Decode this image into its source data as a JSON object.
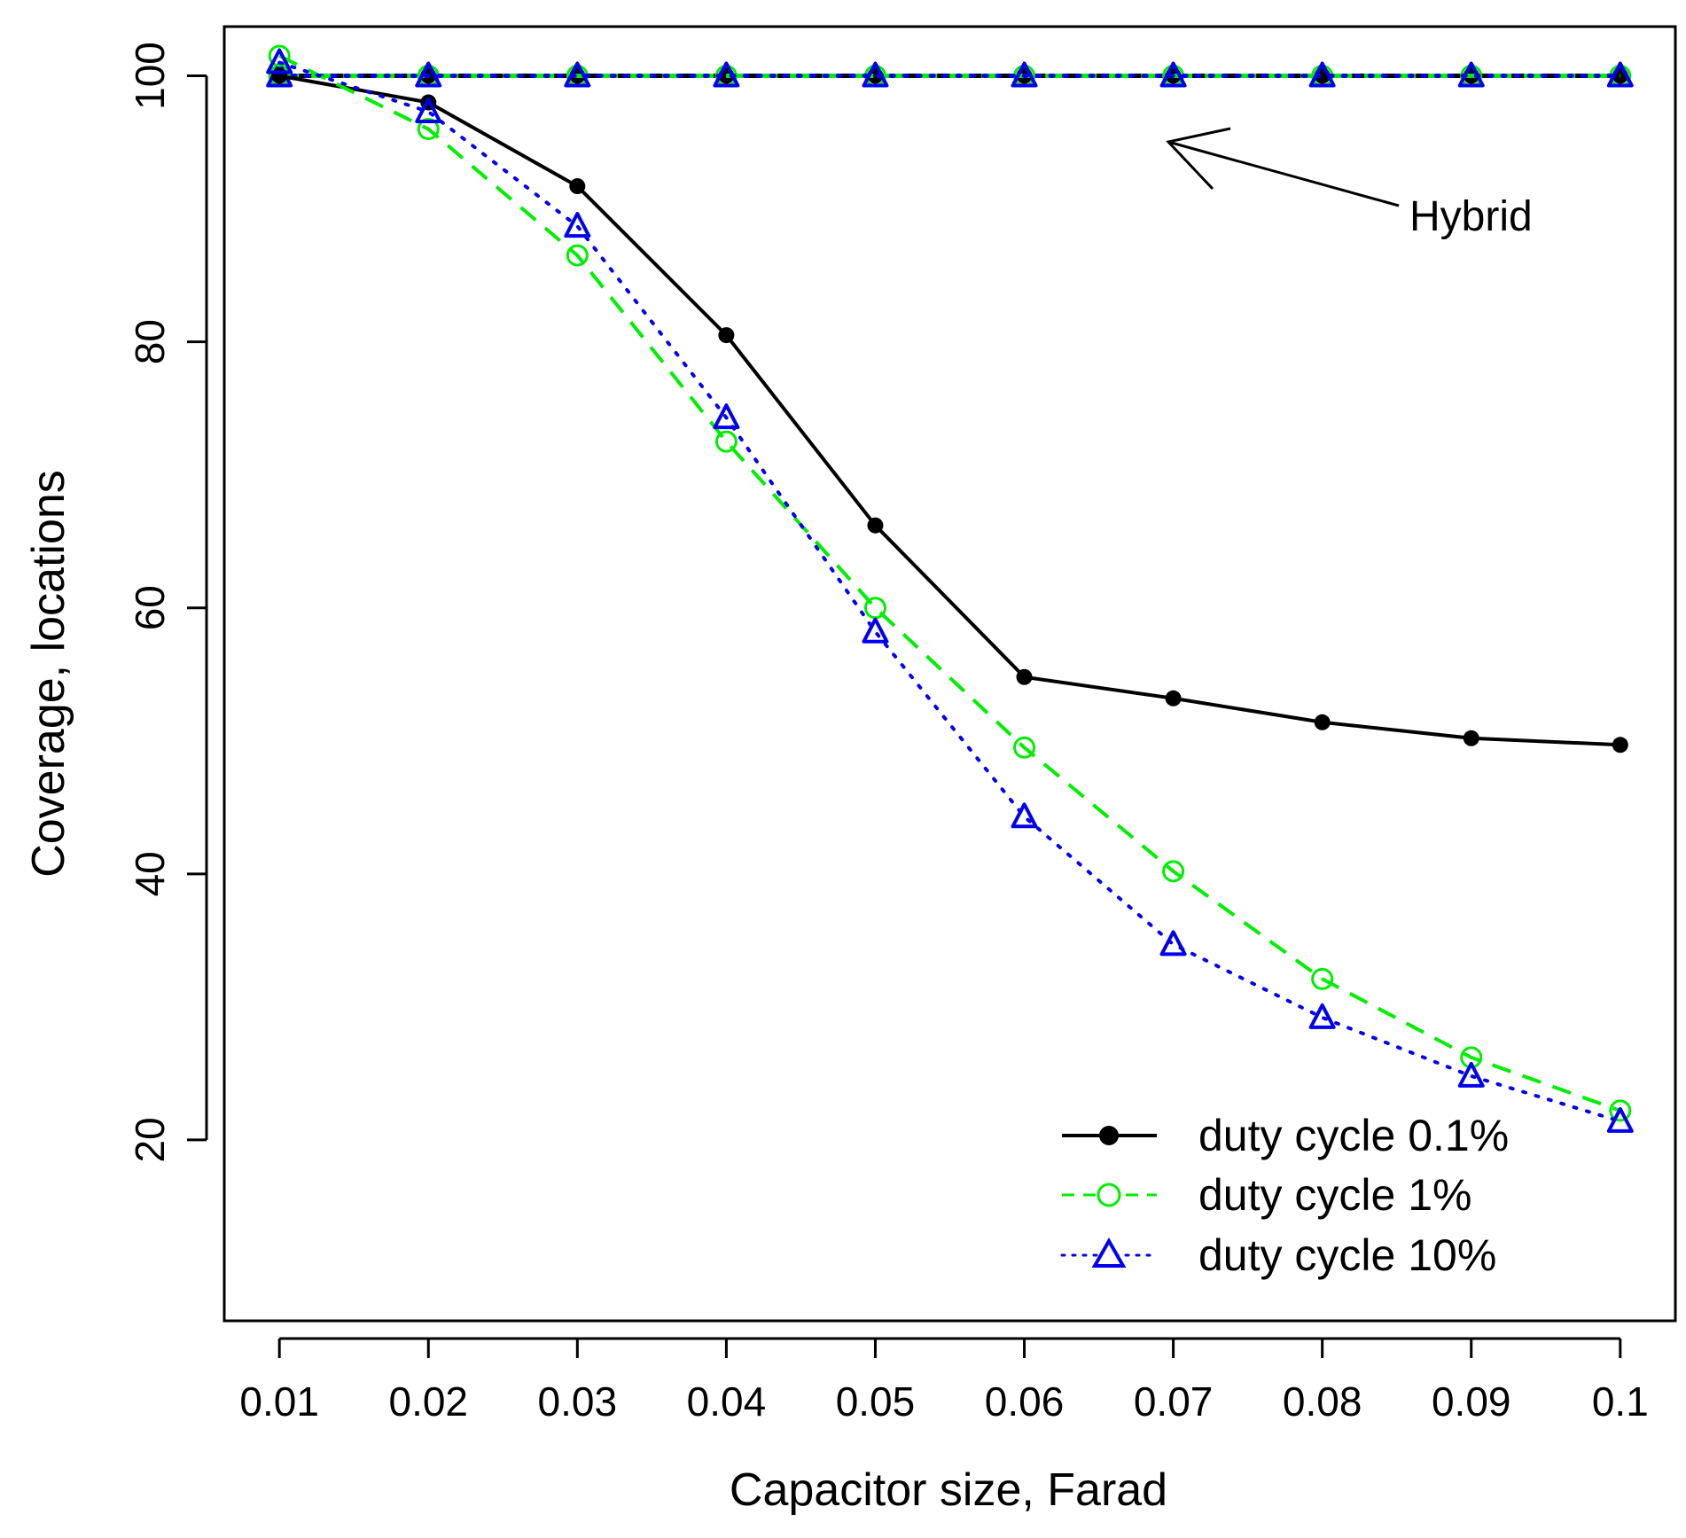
{
  "chart_data": {
    "type": "line",
    "title": "",
    "xlabel": "Capacitor size, Farad",
    "ylabel": "Coverage, locations",
    "categories": [
      "0.01",
      "0.02",
      "0.03",
      "0.04",
      "0.05",
      "0.06",
      "0.07",
      "0.08",
      "0.09",
      "0.1"
    ],
    "x": [
      0.01,
      0.02,
      0.03,
      0.04,
      0.05,
      0.06,
      0.07,
      0.08,
      0.09,
      0.1
    ],
    "xlim": [
      0.0063,
      0.1037
    ],
    "ylim": [
      6.4,
      103.7
    ],
    "yticks": [
      20,
      40,
      60,
      80,
      100
    ],
    "ytick_labels": [
      "20",
      "40",
      "60",
      "80",
      "100"
    ],
    "grid": false,
    "legend_position": "bottom-right",
    "series": [
      {
        "name": "duty cycle 0.1%",
        "color": "#000000",
        "line_style": "solid",
        "marker": "filled-circle",
        "values": [
          100,
          98,
          91.7,
          80.5,
          66.2,
          54.8,
          53.2,
          51.4,
          50.2,
          49.7
        ]
      },
      {
        "name": "duty cycle 1%",
        "color": "#00ee00",
        "line_style": "dashed",
        "marker": "open-circle",
        "values": [
          101.5,
          96,
          86.5,
          72.5,
          60,
          49.5,
          40.2,
          32.1,
          26.2,
          22.2
        ]
      },
      {
        "name": "duty cycle 10%",
        "color": "#0000ee",
        "line_style": "dotted",
        "marker": "open-triangle",
        "values": [
          101,
          97.3,
          88.7,
          74.3,
          58.2,
          44.3,
          34.7,
          29.2,
          24.8,
          21.4
        ]
      }
    ],
    "hybrid_series": [
      {
        "name": "duty cycle 0.1% (hybrid)",
        "color": "#000000",
        "line_style": "solid",
        "marker": "filled-circle",
        "values": [
          100,
          100,
          100,
          100,
          100,
          100,
          100,
          100,
          100,
          100
        ]
      },
      {
        "name": "duty cycle 1% (hybrid)",
        "color": "#00ee00",
        "line_style": "dashed",
        "marker": "open-circle",
        "values": [
          100,
          100,
          100,
          100,
          100,
          100,
          100,
          100,
          100,
          100
        ]
      },
      {
        "name": "duty cycle 10% (hybrid)",
        "color": "#0000ee",
        "line_style": "dotted",
        "marker": "open-triangle",
        "values": [
          100,
          100,
          100,
          100,
          100,
          100,
          100,
          100,
          100,
          100
        ]
      }
    ],
    "annotations": [
      {
        "text": "Hybrid",
        "points_to": {
          "x": 0.07,
          "y": 95.3
        }
      }
    ]
  }
}
